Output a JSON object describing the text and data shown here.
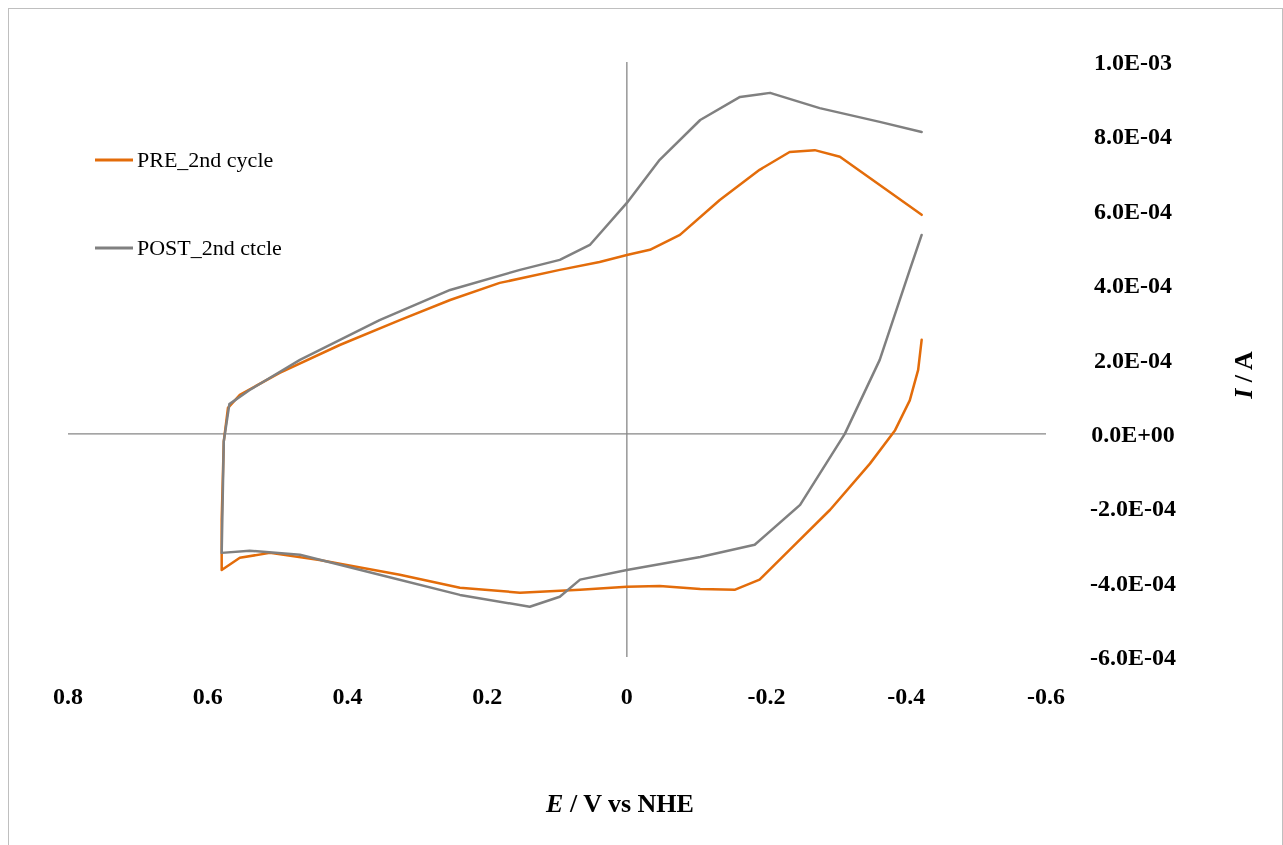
{
  "chart_data": {
    "type": "line",
    "xlabel": "E / V vs NHE",
    "ylabel": "I / A",
    "xlim": [
      0.8,
      -0.6
    ],
    "xticks": [
      0.8,
      0.6,
      0.4,
      0.2,
      0,
      -0.2,
      -0.4,
      -0.6
    ],
    "ylim": [
      -0.0006,
      0.001
    ],
    "yticks": [
      {
        "value": -0.0006,
        "label": "-6.0E-04"
      },
      {
        "value": -0.0004,
        "label": "-4.0E-04"
      },
      {
        "value": -0.0002,
        "label": "-2.0E-04"
      },
      {
        "value": 0,
        "label": "0.0E+00"
      },
      {
        "value": 0.0002,
        "label": "2.0E-04"
      },
      {
        "value": 0.0004,
        "label": "4.0E-04"
      },
      {
        "value": 0.0006,
        "label": "6.0E-04"
      },
      {
        "value": 0.0008,
        "label": "8.0E-04"
      },
      {
        "value": 0.001,
        "label": "1.0E-03"
      }
    ],
    "legend": "top left",
    "marker": "none",
    "line_style": "solid",
    "series": [
      {
        "name": "PRE_2nd cycle",
        "color": "#e36c0a",
        "x": [
          -0.422,
          -0.362,
          -0.305,
          -0.269,
          -0.233,
          -0.19,
          -0.133,
          -0.076,
          -0.033,
          0,
          0.039,
          0.096,
          0.182,
          0.253,
          0.325,
          0.411,
          0.497,
          0.554,
          0.571,
          0.577,
          0.58,
          0.58,
          0.554,
          0.511,
          0.44,
          0.325,
          0.239,
          0.153,
          0.067,
          0,
          -0.047,
          -0.105,
          -0.155,
          -0.19,
          -0.233,
          -0.291,
          -0.348,
          -0.384,
          -0.405,
          -0.417,
          -0.422
        ],
        "values": [
          0.000589,
          0.000669,
          0.000745,
          0.000763,
          0.000758,
          0.00071,
          0.000629,
          0.000535,
          0.000495,
          0.000481,
          0.000462,
          0.000441,
          0.000406,
          0.00036,
          0.000306,
          0.000239,
          0.000164,
          0.000105,
          7e-05,
          -2e-05,
          -0.000231,
          -0.000366,
          -0.000333,
          -0.00032,
          -0.000339,
          -0.000379,
          -0.000414,
          -0.000427,
          -0.000419,
          -0.000411,
          -0.000409,
          -0.000417,
          -0.000419,
          -0.000392,
          -0.000312,
          -0.000204,
          -8e-05,
          1e-05,
          9e-05,
          0.000172,
          0.000253
        ]
      },
      {
        "name": "POST_2nd ctcle",
        "color": "#808080",
        "x": [
          -0.422,
          -0.362,
          -0.276,
          -0.205,
          -0.162,
          -0.105,
          -0.047,
          0,
          0.053,
          0.096,
          0.153,
          0.253,
          0.354,
          0.468,
          0.54,
          0.569,
          0.577,
          0.58,
          0.54,
          0.468,
          0.354,
          0.239,
          0.139,
          0.096,
          0.067,
          0,
          -0.105,
          -0.183,
          -0.248,
          -0.312,
          -0.362,
          -0.405,
          -0.422
        ],
        "values": [
          0.000812,
          0.000839,
          0.000876,
          0.000917,
          0.000906,
          0.000844,
          0.000737,
          0.000621,
          0.000508,
          0.000468,
          0.000441,
          0.000387,
          0.000306,
          0.000199,
          0.000118,
          8e-05,
          -2e-05,
          -0.00032,
          -0.000314,
          -0.000325,
          -0.000379,
          -0.000433,
          -0.000465,
          -0.000438,
          -0.000392,
          -0.000366,
          -0.000331,
          -0.000298,
          -0.000191,
          0,
          0.000199,
          0.000441,
          0.000535
        ]
      }
    ]
  }
}
